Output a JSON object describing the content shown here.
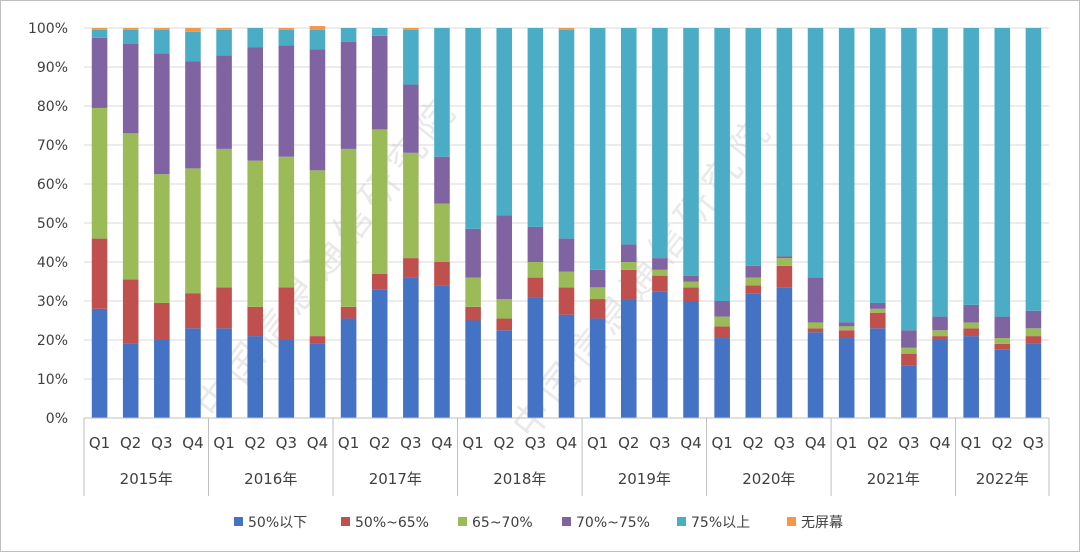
{
  "chart_data": {
    "type": "stacked-bar-100",
    "ylim": [
      0,
      100
    ],
    "yticks": [
      0,
      10,
      20,
      30,
      40,
      50,
      60,
      70,
      80,
      90,
      100
    ],
    "ytick_labels": [
      "0%",
      "10%",
      "20%",
      "30%",
      "40%",
      "50%",
      "60%",
      "70%",
      "80%",
      "90%",
      "100%"
    ],
    "years": [
      "2015年",
      "2016年",
      "2017年",
      "2018年",
      "2019年",
      "2020年",
      "2021年",
      "2022年"
    ],
    "categories": [
      "Q1",
      "Q2",
      "Q3",
      "Q4",
      "Q1",
      "Q2",
      "Q3",
      "Q4",
      "Q1",
      "Q2",
      "Q3",
      "Q4",
      "Q1",
      "Q2",
      "Q3",
      "Q4",
      "Q1",
      "Q2",
      "Q3",
      "Q4",
      "Q1",
      "Q2",
      "Q3",
      "Q4",
      "Q1",
      "Q2",
      "Q3",
      "Q4",
      "Q1",
      "Q2",
      "Q3"
    ],
    "legend_position": "bottom",
    "series": [
      {
        "name": "50%以下",
        "color": "#4472C4",
        "values": [
          28.0,
          19.0,
          20.0,
          23.0,
          23.0,
          21.0,
          20.0,
          19.0,
          25.5,
          33.0,
          36.0,
          34.0,
          25.0,
          22.5,
          31.0,
          26.5,
          25.5,
          30.5,
          32.5,
          30.0,
          20.5,
          32.0,
          33.5,
          22.0,
          20.5,
          23.0,
          13.5,
          20.0,
          21.0,
          17.5,
          19.0
        ]
      },
      {
        "name": "50%~65%",
        "color": "#C0504D",
        "values": [
          18.0,
          16.5,
          9.5,
          9.0,
          10.5,
          7.5,
          13.5,
          2.0,
          3.0,
          4.0,
          5.0,
          6.0,
          3.5,
          3.0,
          5.0,
          7.0,
          5.0,
          7.5,
          4.0,
          3.5,
          3.0,
          2.0,
          5.5,
          1.0,
          2.0,
          4.0,
          3.0,
          1.0,
          2.0,
          1.5,
          2.0
        ]
      },
      {
        "name": "65~70%",
        "color": "#9BBB59",
        "values": [
          33.5,
          37.5,
          33.0,
          32.0,
          35.5,
          37.5,
          33.5,
          42.5,
          40.5,
          37.0,
          27.0,
          15.0,
          7.5,
          5.0,
          4.0,
          4.0,
          3.0,
          2.0,
          1.5,
          1.5,
          2.5,
          2.0,
          2.0,
          1.5,
          1.0,
          1.0,
          1.5,
          1.5,
          1.5,
          1.5,
          2.0
        ]
      },
      {
        "name": "70%~75%",
        "color": "#8064A2",
        "values": [
          18.0,
          23.0,
          31.0,
          27.5,
          24.0,
          29.0,
          28.5,
          31.0,
          27.5,
          24.0,
          17.5,
          12.0,
          12.5,
          21.5,
          9.0,
          8.5,
          4.5,
          4.5,
          3.0,
          1.5,
          4.0,
          3.0,
          0.5,
          11.5,
          1.0,
          1.5,
          4.5,
          3.5,
          4.5,
          5.5,
          4.5
        ]
      },
      {
        "name": "75%以上",
        "color": "#4BACC6",
        "values": [
          2.0,
          3.5,
          6.0,
          7.5,
          6.5,
          5.0,
          4.0,
          5.0,
          3.5,
          2.0,
          14.0,
          33.0,
          51.5,
          48.0,
          51.0,
          53.5,
          62.0,
          55.5,
          59.0,
          63.5,
          70.0,
          61.0,
          58.5,
          64.0,
          75.5,
          70.5,
          77.5,
          74.0,
          71.0,
          74.0,
          72.5
        ]
      },
      {
        "name": "无屏幕",
        "color": "#F79646",
        "values": [
          0.5,
          0.5,
          0.5,
          1.0,
          0.5,
          0,
          0.5,
          1.0,
          0,
          0,
          0.5,
          0,
          0,
          0,
          0,
          0.5,
          0,
          0,
          0,
          0,
          0,
          0,
          0,
          0,
          0,
          0,
          0,
          0,
          0,
          0,
          0
        ]
      }
    ]
  },
  "watermark": "中国信息通信研究院"
}
